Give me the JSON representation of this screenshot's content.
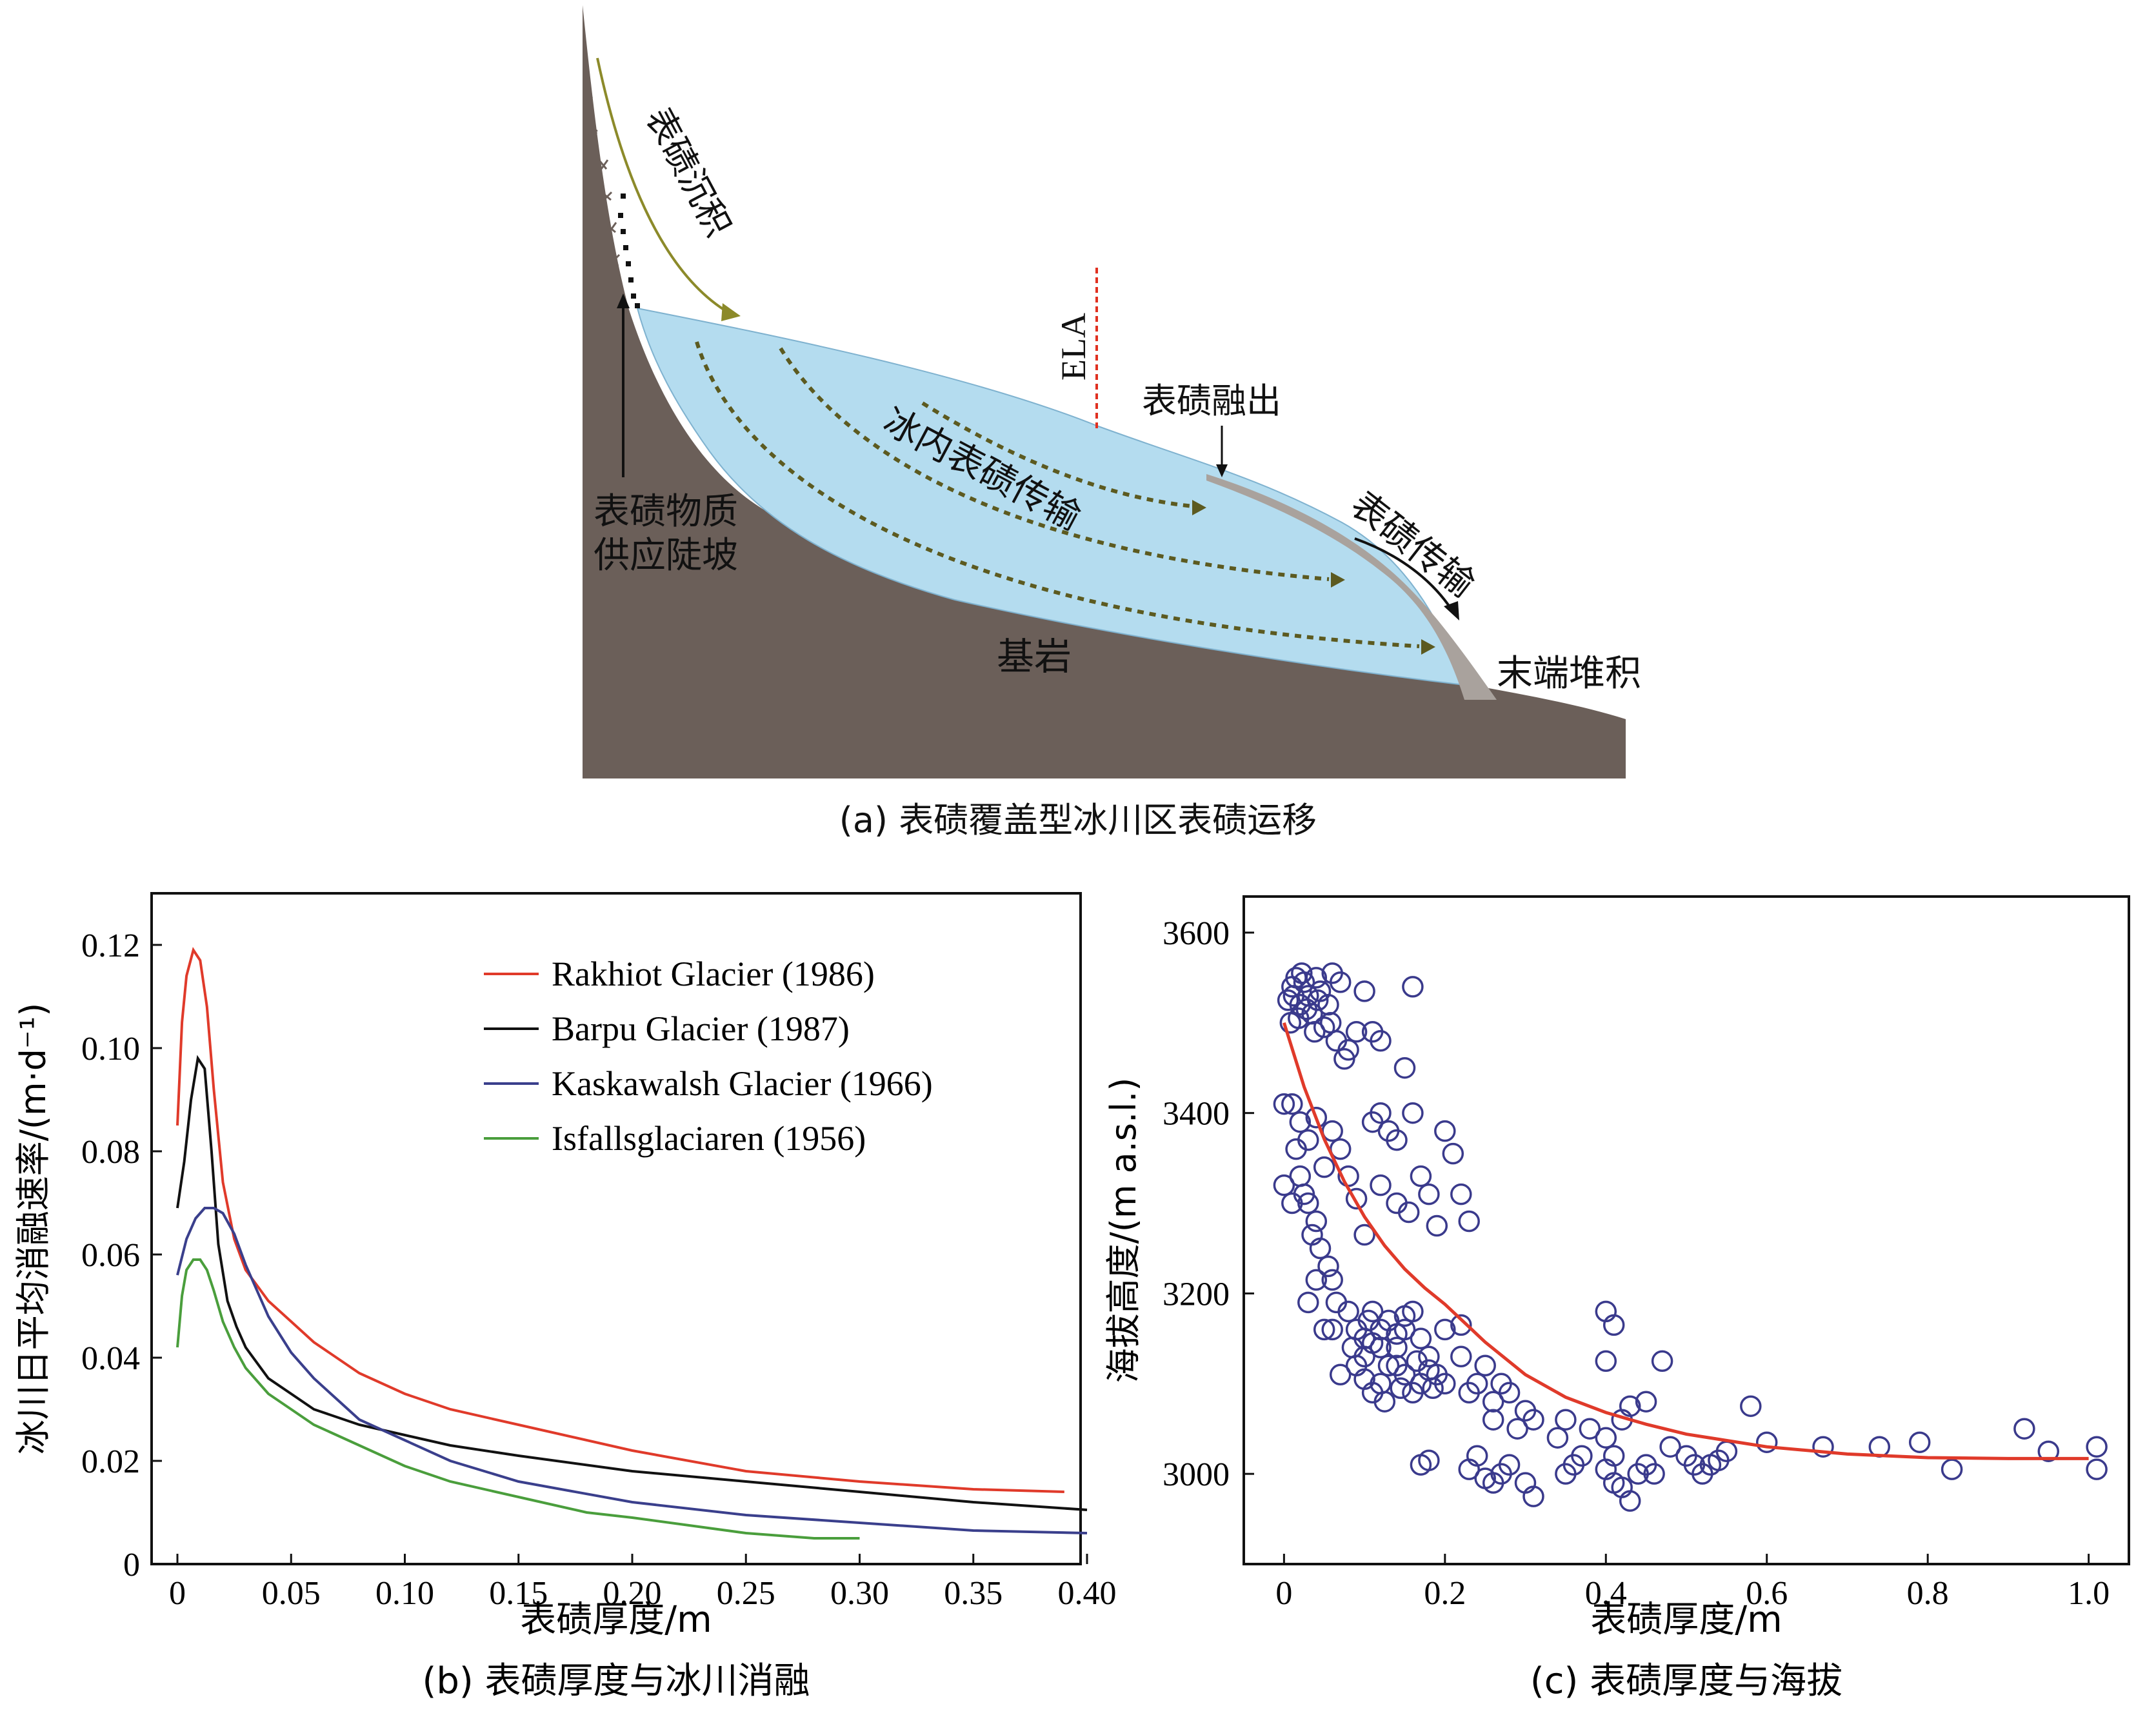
{
  "diagram": {
    "labels": {
      "deposition": "表碛沉积",
      "supply_slope_1": "表碛物质",
      "supply_slope_2": "供应陡坡",
      "ela": "ELA",
      "emergence": "表碛融出",
      "englacial": "冰内表碛传输",
      "surface_transport": "表碛传输",
      "bedrock": "基岩",
      "terminal": "末端堆积"
    },
    "caption": "(a) 表碛覆盖型冰川区表碛运移",
    "colors": {
      "ice": "#b4dcef",
      "bedrock": "#6b5f59",
      "debris": "#a9a29d",
      "flow": "#5c5a20",
      "ela": "#e03020",
      "deposit_arrow": "#8c8a2a"
    }
  },
  "chart_data": [
    {
      "type": "line",
      "caption": "(b) 表碛厚度与冰川消融",
      "xlabel": "表碛厚度/m",
      "ylabel": "冰川日平均消融速率/(m·d⁻¹)",
      "xlim": [
        0,
        0.4
      ],
      "ylim": [
        0,
        0.13
      ],
      "xticks": [
        "0",
        "0.05",
        "0.10",
        "0.15",
        "0.20",
        "0.25",
        "0.30",
        "0.35",
        "0.40"
      ],
      "yticks": [
        "0",
        "0.02",
        "0.04",
        "0.06",
        "0.08",
        "0.10",
        "0.12"
      ],
      "legend_position": "top-right",
      "series": [
        {
          "name": "Rakhiot Glacier (1986)",
          "color": "#e03a2a",
          "x": [
            0,
            0.002,
            0.004,
            0.007,
            0.01,
            0.013,
            0.016,
            0.02,
            0.025,
            0.03,
            0.04,
            0.05,
            0.06,
            0.08,
            0.1,
            0.12,
            0.15,
            0.2,
            0.25,
            0.3,
            0.35,
            0.39
          ],
          "y": [
            0.085,
            0.105,
            0.114,
            0.119,
            0.117,
            0.108,
            0.092,
            0.074,
            0.063,
            0.057,
            0.051,
            0.047,
            0.043,
            0.037,
            0.033,
            0.03,
            0.027,
            0.022,
            0.018,
            0.016,
            0.0145,
            0.014
          ]
        },
        {
          "name": "Barpu Glacier (1987)",
          "color": "#111111",
          "x": [
            0,
            0.003,
            0.006,
            0.009,
            0.012,
            0.015,
            0.018,
            0.022,
            0.026,
            0.03,
            0.04,
            0.05,
            0.06,
            0.08,
            0.1,
            0.12,
            0.15,
            0.2,
            0.25,
            0.3,
            0.35,
            0.4
          ],
          "y": [
            0.069,
            0.078,
            0.09,
            0.098,
            0.096,
            0.08,
            0.062,
            0.051,
            0.046,
            0.042,
            0.036,
            0.033,
            0.03,
            0.027,
            0.025,
            0.023,
            0.021,
            0.018,
            0.016,
            0.014,
            0.012,
            0.0105
          ]
        },
        {
          "name": "Kaskawalsh Glacier (1966)",
          "color": "#3a3f8c",
          "x": [
            0,
            0.004,
            0.008,
            0.012,
            0.016,
            0.02,
            0.025,
            0.03,
            0.04,
            0.05,
            0.06,
            0.08,
            0.1,
            0.12,
            0.15,
            0.2,
            0.25,
            0.3,
            0.35,
            0.4
          ],
          "y": [
            0.056,
            0.063,
            0.067,
            0.069,
            0.069,
            0.068,
            0.064,
            0.058,
            0.048,
            0.041,
            0.036,
            0.028,
            0.024,
            0.02,
            0.016,
            0.012,
            0.0095,
            0.008,
            0.0065,
            0.006
          ]
        },
        {
          "name": "Isfallsglaciaren (1956)",
          "color": "#4a9e3c",
          "x": [
            0,
            0.002,
            0.004,
            0.007,
            0.01,
            0.013,
            0.016,
            0.02,
            0.025,
            0.03,
            0.04,
            0.05,
            0.06,
            0.08,
            0.1,
            0.12,
            0.15,
            0.18,
            0.2,
            0.25,
            0.28,
            0.3
          ],
          "y": [
            0.042,
            0.052,
            0.057,
            0.059,
            0.059,
            0.057,
            0.053,
            0.047,
            0.042,
            0.038,
            0.033,
            0.03,
            0.027,
            0.023,
            0.019,
            0.016,
            0.013,
            0.01,
            0.009,
            0.006,
            0.005,
            0.005
          ]
        }
      ]
    },
    {
      "type": "scatter",
      "caption": "(c) 表碛厚度与海拔",
      "xlabel": "表碛厚度/m",
      "ylabel": "海拔高度/(m a.s.l.)",
      "xlim": [
        -0.05,
        1.05
      ],
      "ylim": [
        2900,
        3640
      ],
      "xticks": [
        "0",
        "0.2",
        "0.4",
        "0.6",
        "0.8",
        "1.0"
      ],
      "yticks": [
        "3000",
        "3200",
        "3400",
        "3600"
      ],
      "point_color": "#3a3a8c",
      "fit_color": "#e03a2a",
      "points": [
        [
          0.005,
          3525
        ],
        [
          0.01,
          3540
        ],
        [
          0.015,
          3550
        ],
        [
          0.02,
          3520
        ],
        [
          0.025,
          3545
        ],
        [
          0.03,
          3530
        ],
        [
          0.035,
          3510
        ],
        [
          0.04,
          3550
        ],
        [
          0.045,
          3535
        ],
        [
          0.05,
          3495
        ],
        [
          0.055,
          3520
        ],
        [
          0.06,
          3555
        ],
        [
          0.065,
          3480
        ],
        [
          0.07,
          3545
        ],
        [
          0.075,
          3460
        ],
        [
          0.08,
          3470
        ],
        [
          0.008,
          3500
        ],
        [
          0.018,
          3505
        ],
        [
          0.028,
          3515
        ],
        [
          0.038,
          3490
        ],
        [
          0.012,
          3530
        ],
        [
          0.022,
          3555
        ],
        [
          0.042,
          3525
        ],
        [
          0.058,
          3500
        ],
        [
          0.1,
          3535
        ],
        [
          0.11,
          3490
        ],
        [
          0.12,
          3480
        ],
        [
          0.16,
          3540
        ],
        [
          0.15,
          3450
        ],
        [
          0.09,
          3490
        ],
        [
          0.0,
          3410
        ],
        [
          0.01,
          3410
        ],
        [
          0.02,
          3390
        ],
        [
          0.03,
          3370
        ],
        [
          0.04,
          3395
        ],
        [
          0.05,
          3340
        ],
        [
          0.06,
          3380
        ],
        [
          0.07,
          3360
        ],
        [
          0.08,
          3330
        ],
        [
          0.09,
          3305
        ],
        [
          0.02,
          3330
        ],
        [
          0.03,
          3300
        ],
        [
          0.04,
          3280
        ],
        [
          0.015,
          3360
        ],
        [
          0.025,
          3310
        ],
        [
          0.01,
          3300
        ],
        [
          0.0,
          3320
        ],
        [
          0.035,
          3265
        ],
        [
          0.045,
          3250
        ],
        [
          0.055,
          3230
        ],
        [
          0.06,
          3215
        ],
        [
          0.065,
          3190
        ],
        [
          0.05,
          3160
        ],
        [
          0.03,
          3190
        ],
        [
          0.04,
          3215
        ],
        [
          0.11,
          3390
        ],
        [
          0.12,
          3400
        ],
        [
          0.14,
          3370
        ],
        [
          0.16,
          3400
        ],
        [
          0.17,
          3330
        ],
        [
          0.18,
          3310
        ],
        [
          0.2,
          3380
        ],
        [
          0.21,
          3355
        ],
        [
          0.19,
          3275
        ],
        [
          0.22,
          3310
        ],
        [
          0.23,
          3280
        ],
        [
          0.155,
          3290
        ],
        [
          0.1,
          3265
        ],
        [
          0.12,
          3320
        ],
        [
          0.13,
          3380
        ],
        [
          0.14,
          3300
        ],
        [
          0.08,
          3180
        ],
        [
          0.09,
          3160
        ],
        [
          0.1,
          3150
        ],
        [
          0.11,
          3145
        ],
        [
          0.12,
          3140
        ],
        [
          0.13,
          3170
        ],
        [
          0.14,
          3155
        ],
        [
          0.15,
          3160
        ],
        [
          0.16,
          3180
        ],
        [
          0.17,
          3150
        ],
        [
          0.18,
          3130
        ],
        [
          0.19,
          3110
        ],
        [
          0.2,
          3160
        ],
        [
          0.09,
          3120
        ],
        [
          0.1,
          3105
        ],
        [
          0.11,
          3090
        ],
        [
          0.12,
          3100
        ],
        [
          0.13,
          3120
        ],
        [
          0.14,
          3140
        ],
        [
          0.15,
          3110
        ],
        [
          0.16,
          3090
        ],
        [
          0.17,
          3100
        ],
        [
          0.18,
          3115
        ],
        [
          0.1,
          3130
        ],
        [
          0.12,
          3160
        ],
        [
          0.14,
          3120
        ],
        [
          0.085,
          3140
        ],
        [
          0.105,
          3170
        ],
        [
          0.125,
          3080
        ],
        [
          0.145,
          3095
        ],
        [
          0.165,
          3125
        ],
        [
          0.185,
          3095
        ],
        [
          0.07,
          3110
        ],
        [
          0.06,
          3160
        ],
        [
          0.11,
          3180
        ],
        [
          0.15,
          3175
        ],
        [
          0.22,
          3130
        ],
        [
          0.24,
          3100
        ],
        [
          0.25,
          3120
        ],
        [
          0.26,
          3080
        ],
        [
          0.27,
          3100
        ],
        [
          0.28,
          3090
        ],
        [
          0.3,
          3070
        ],
        [
          0.22,
          3165
        ],
        [
          0.2,
          3100
        ],
        [
          0.23,
          3090
        ],
        [
          0.26,
          3060
        ],
        [
          0.29,
          3050
        ],
        [
          0.31,
          3060
        ],
        [
          0.17,
          3010
        ],
        [
          0.18,
          3015
        ],
        [
          0.23,
          3005
        ],
        [
          0.24,
          3020
        ],
        [
          0.25,
          2995
        ],
        [
          0.26,
          2990
        ],
        [
          0.27,
          3000
        ],
        [
          0.28,
          3010
        ],
        [
          0.3,
          2990
        ],
        [
          0.31,
          2975
        ],
        [
          0.35,
          3000
        ],
        [
          0.36,
          3010
        ],
        [
          0.37,
          3020
        ],
        [
          0.4,
          3005
        ],
        [
          0.41,
          2990
        ],
        [
          0.42,
          2985
        ],
        [
          0.43,
          2970
        ],
        [
          0.44,
          3000
        ],
        [
          0.45,
          3010
        ],
        [
          0.46,
          3000
        ],
        [
          0.34,
          3040
        ],
        [
          0.35,
          3060
        ],
        [
          0.38,
          3050
        ],
        [
          0.42,
          3060
        ],
        [
          0.43,
          3075
        ],
        [
          0.45,
          3080
        ],
        [
          0.48,
          3030
        ],
        [
          0.4,
          3040
        ],
        [
          0.41,
          3020
        ],
        [
          0.4,
          3125
        ],
        [
          0.4,
          3180
        ],
        [
          0.41,
          3165
        ],
        [
          0.47,
          3125
        ],
        [
          0.5,
          3020
        ],
        [
          0.51,
          3010
        ],
        [
          0.52,
          3000
        ],
        [
          0.53,
          3010
        ],
        [
          0.55,
          3025
        ],
        [
          0.58,
          3075
        ],
        [
          0.6,
          3035
        ],
        [
          0.67,
          3030
        ],
        [
          0.74,
          3030
        ],
        [
          0.79,
          3035
        ],
        [
          0.83,
          3005
        ],
        [
          0.92,
          3050
        ],
        [
          0.95,
          3025
        ],
        [
          1.01,
          3030
        ],
        [
          1.01,
          3005
        ],
        [
          0.54,
          3015
        ]
      ],
      "fit": {
        "x": [
          0,
          0.025,
          0.05,
          0.075,
          0.1,
          0.125,
          0.15,
          0.175,
          0.2,
          0.25,
          0.3,
          0.35,
          0.4,
          0.45,
          0.5,
          0.6,
          0.7,
          0.8,
          0.9,
          1.0
        ],
        "y": [
          3500,
          3429,
          3371,
          3324,
          3285,
          3253,
          3227,
          3206,
          3188,
          3146,
          3110,
          3085,
          3068,
          3055,
          3044,
          3030,
          3022,
          3018,
          3017,
          3017
        ]
      }
    }
  ]
}
